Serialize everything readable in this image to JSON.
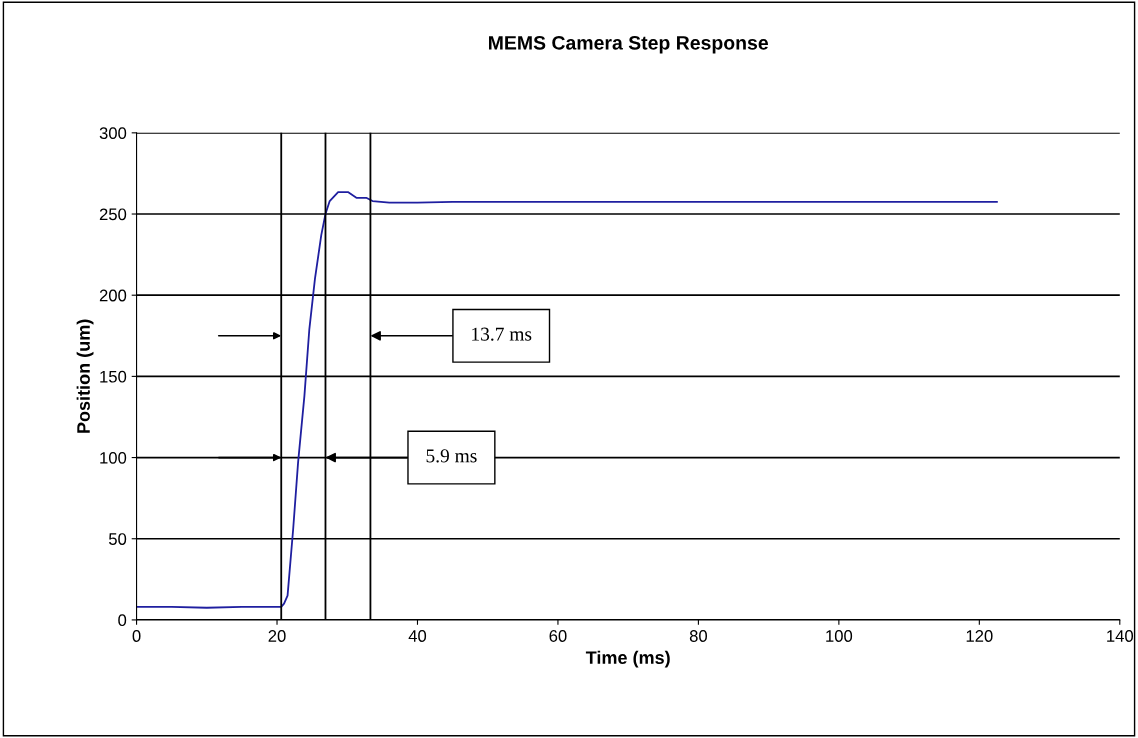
{
  "chart_data": {
    "type": "line",
    "title": "MEMS Camera Step Response",
    "xlabel": "Time (ms)",
    "ylabel": "Position (um)",
    "x": [
      0,
      5,
      10,
      15,
      20,
      20.6,
      21.0,
      21.5,
      22.3,
      23.0,
      23.9,
      24.6,
      25.4,
      26.3,
      26.9,
      27.5,
      28.7,
      30.1,
      31.3,
      32.7,
      33.6,
      36,
      40,
      45,
      50,
      60,
      70,
      80,
      90,
      100,
      110,
      122.5
    ],
    "series": [
      {
        "color": "#1f1fa0",
        "values": [
          8,
          8,
          7.5,
          8,
          8,
          8,
          10,
          15,
          56,
          97,
          138,
          179,
          210,
          237,
          250,
          258,
          263.5,
          263.5,
          260,
          260,
          258,
          257,
          257,
          257.5,
          257.5,
          257.5,
          257.5,
          257.5,
          257.5,
          257.5,
          257.5,
          257.5
        ]
      }
    ],
    "xlim": [
      0,
      140
    ],
    "xticks": [
      0,
      20,
      40,
      60,
      80,
      100,
      120,
      140
    ],
    "ylim": [
      0,
      300
    ],
    "yticks": [
      0,
      50,
      100,
      150,
      200,
      250,
      300
    ],
    "grid": "y",
    "ref_lines": [
      {
        "axis": "x",
        "value": 20.6,
        "color": "#000000"
      },
      {
        "axis": "x",
        "value": 26.9,
        "color": "#000000"
      },
      {
        "axis": "x",
        "value": 33.3,
        "color": "#000000"
      }
    ],
    "annotations": [
      {
        "text": "13.7 ms",
        "x": 33.3,
        "y": 175
      },
      {
        "text": "5.9 ms",
        "x": 26.9,
        "y": 100
      }
    ]
  }
}
